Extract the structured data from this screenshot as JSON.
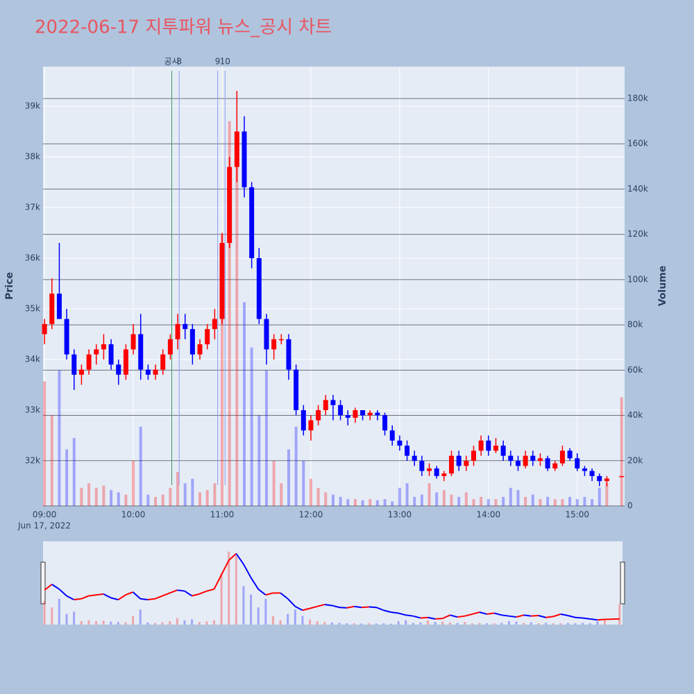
{
  "chart_data": {
    "type": "candlestick",
    "title": "2022-06-17 지투파워 뉴스_공시 차트",
    "y_label": "Price",
    "y2_label": "Volume",
    "x_date_label": "Jun 17, 2022",
    "up_color": "#ff0000",
    "down_color": "#0000ff",
    "x": [
      "09:00",
      "09:05",
      "09:10",
      "09:15",
      "09:20",
      "09:25",
      "09:30",
      "09:35",
      "09:40",
      "09:45",
      "09:50",
      "09:55",
      "10:00",
      "10:05",
      "10:10",
      "10:15",
      "10:20",
      "10:25",
      "10:30",
      "10:35",
      "10:40",
      "10:45",
      "10:50",
      "10:55",
      "11:00",
      "11:05",
      "11:10",
      "11:15",
      "11:20",
      "11:25",
      "11:30",
      "11:35",
      "11:40",
      "11:45",
      "11:50",
      "11:55",
      "12:00",
      "12:05",
      "12:10",
      "12:15",
      "12:20",
      "12:25",
      "12:30",
      "12:35",
      "12:40",
      "12:45",
      "12:50",
      "12:55",
      "13:00",
      "13:05",
      "13:10",
      "13:15",
      "13:20",
      "13:25",
      "13:30",
      "13:35",
      "13:40",
      "13:45",
      "13:50",
      "13:55",
      "14:00",
      "14:05",
      "14:10",
      "14:15",
      "14:20",
      "14:25",
      "14:30",
      "14:35",
      "14:40",
      "14:45",
      "14:50",
      "14:55",
      "15:00",
      "15:05",
      "15:10",
      "15:15",
      "15:20",
      "15:30"
    ],
    "open": [
      34500,
      34700,
      35300,
      34800,
      34100,
      33700,
      33800,
      34100,
      34200,
      34300,
      33900,
      33700,
      34200,
      34500,
      33800,
      33700,
      33800,
      34100,
      34400,
      34700,
      34600,
      34100,
      34300,
      34600,
      34800,
      36300,
      37800,
      38500,
      37400,
      36000,
      34800,
      34200,
      34400,
      34400,
      33800,
      33000,
      32600,
      32800,
      33000,
      33200,
      33100,
      32900,
      32850,
      33000,
      32900,
      32950,
      32900,
      32600,
      32400,
      32300,
      32100,
      32000,
      31800,
      31850,
      31700,
      31750,
      32100,
      31900,
      32000,
      32200,
      32400,
      32200,
      32300,
      32100,
      32000,
      31900,
      32100,
      32000,
      32050,
      31850,
      31950,
      32200,
      32050,
      31850,
      31800,
      31700,
      31600,
      31700
    ],
    "high": [
      34800,
      35600,
      36300,
      35000,
      34200,
      33900,
      34200,
      34300,
      34500,
      34400,
      34000,
      34300,
      34700,
      34900,
      33900,
      33900,
      34200,
      34500,
      34900,
      34900,
      34700,
      34400,
      34700,
      35000,
      36500,
      38000,
      39300,
      38800,
      37500,
      36200,
      34900,
      34500,
      34500,
      34500,
      33900,
      33100,
      32900,
      33100,
      33300,
      33300,
      33200,
      33000,
      33050,
      33000,
      33000,
      33000,
      32950,
      32700,
      32500,
      32400,
      32200,
      32100,
      31950,
      31900,
      31800,
      32200,
      32200,
      32100,
      32300,
      32500,
      32500,
      32450,
      32400,
      32200,
      32100,
      32200,
      32200,
      32150,
      32100,
      32000,
      32300,
      32250,
      32150,
      31900,
      31850,
      31750,
      31700,
      31700
    ],
    "low": [
      34300,
      34600,
      34800,
      34000,
      33400,
      33500,
      33700,
      33900,
      34000,
      33800,
      33500,
      33600,
      34100,
      33600,
      33600,
      33600,
      33700,
      34000,
      34200,
      34400,
      33900,
      34000,
      34200,
      34400,
      34700,
      36200,
      37500,
      37200,
      35800,
      34700,
      33900,
      34000,
      34300,
      33600,
      32900,
      32500,
      32400,
      32700,
      32900,
      32800,
      32800,
      32700,
      32750,
      32800,
      32800,
      32800,
      32500,
      32300,
      32200,
      32000,
      31900,
      31700,
      31700,
      31650,
      31600,
      31700,
      31800,
      31800,
      31900,
      32100,
      32100,
      32150,
      32000,
      31900,
      31800,
      31850,
      31900,
      31900,
      31800,
      31800,
      31900,
      32000,
      31800,
      31700,
      31600,
      31500,
      31500,
      31700
    ],
    "close": [
      34700,
      35300,
      34800,
      34100,
      33700,
      33800,
      34100,
      34200,
      34300,
      33900,
      33700,
      34200,
      34500,
      33800,
      33700,
      33800,
      34100,
      34400,
      34700,
      34600,
      34100,
      34300,
      34600,
      34800,
      36300,
      37800,
      38500,
      37400,
      36000,
      34800,
      34200,
      34400,
      34400,
      33800,
      33000,
      32600,
      32800,
      33000,
      33200,
      33100,
      32900,
      32850,
      33000,
      32900,
      32950,
      32900,
      32600,
      32400,
      32300,
      32100,
      32000,
      31800,
      31850,
      31700,
      31750,
      32100,
      31900,
      32000,
      32200,
      32400,
      32200,
      32300,
      32100,
      32000,
      31900,
      32100,
      32000,
      32050,
      31850,
      31950,
      32200,
      32050,
      31850,
      31800,
      31700,
      31600,
      31650,
      31700
    ],
    "volume": [
      55000,
      40000,
      60000,
      25000,
      30000,
      8000,
      10000,
      8000,
      9000,
      7000,
      6000,
      5000,
      20000,
      35000,
      5000,
      4000,
      5000,
      8000,
      15000,
      10000,
      12000,
      6000,
      7000,
      10000,
      120000,
      170000,
      160000,
      90000,
      70000,
      40000,
      60000,
      20000,
      10000,
      25000,
      35000,
      20000,
      12000,
      8000,
      6000,
      5000,
      4000,
      3000,
      3000,
      2500,
      3000,
      2500,
      3000,
      2000,
      8000,
      10000,
      4000,
      5000,
      10000,
      6000,
      7000,
      5000,
      4000,
      6000,
      3000,
      4000,
      3000,
      3000,
      4000,
      8000,
      7000,
      4000,
      5000,
      3000,
      4000,
      3000,
      3000,
      4000,
      3000,
      4000,
      3000,
      8000,
      10000,
      48000
    ],
    "xlim": [
      "08:59",
      "15:32"
    ],
    "xticks": [
      "09:00",
      "10:00",
      "11:00",
      "12:00",
      "13:00",
      "14:00",
      "15:00"
    ],
    "ylim": [
      31110,
      39780
    ],
    "yticks": [
      {
        "value": 32000,
        "label": "32k"
      },
      {
        "value": 33000,
        "label": "33k"
      },
      {
        "value": 34000,
        "label": "34k"
      },
      {
        "value": 35000,
        "label": "35k"
      },
      {
        "value": 36000,
        "label": "36k"
      },
      {
        "value": 37000,
        "label": "37k"
      },
      {
        "value": 38000,
        "label": "38k"
      },
      {
        "value": 39000,
        "label": "39k"
      }
    ],
    "y2lim": [
      0,
      194100
    ],
    "y2ticks": [
      0,
      {
        "value": 20000,
        "label": "20k"
      },
      {
        "value": 40000,
        "label": "40k"
      },
      {
        "value": 60000,
        "label": "60k"
      },
      {
        "value": 80000,
        "label": "80k"
      },
      {
        "value": 100000,
        "label": "100k"
      },
      {
        "value": 120000,
        "label": "120k"
      },
      {
        "value": 140000,
        "label": "140k"
      },
      {
        "value": 160000,
        "label": "160k"
      },
      {
        "value": 180000,
        "label": "180k"
      }
    ],
    "annotations": [
      {
        "x": "10:26",
        "label": "공시",
        "color": "#3a9a5a"
      },
      {
        "x": "10:31",
        "label": "8",
        "color": "#8a9cf0"
      },
      {
        "x": "10:57",
        "label": "9",
        "color": "#8a9cf0"
      },
      {
        "x": "11:02",
        "label": "10",
        "color": "#8a9cf0"
      }
    ]
  }
}
